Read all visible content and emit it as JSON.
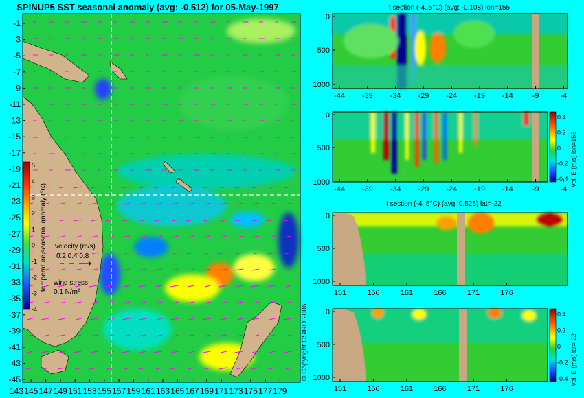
{
  "colors": {
    "page_bg": "#00ffff",
    "land": "#d2b48c",
    "sea": "#22cc44",
    "vector": "#ff00ff",
    "section_bg": "#33cc33"
  },
  "title": "SPINUP5 SST seasonal anomaly (avg: -0.512) for 05-May-1997",
  "copyright": "© Copyright CSIRO 2006",
  "chart_data": [
    {
      "type": "heatmap",
      "id": "map",
      "ylabels": [
        "-1",
        "-3",
        "-5",
        "-7",
        "-9",
        "-11",
        "-13",
        "-15",
        "-17",
        "-19",
        "-21",
        "-23",
        "-25",
        "-27",
        "-29",
        "-31",
        "-33",
        "-35",
        "-37",
        "-39",
        "-41",
        "-43",
        "-45"
      ],
      "xlabels": [
        "143",
        "145",
        "147",
        "149",
        "151",
        "153",
        "155",
        "157",
        "159",
        "161",
        "163",
        "165",
        "167",
        "169",
        "171",
        "173",
        "175",
        "177",
        "179"
      ],
      "colorbar": {
        "label": "temperature seasonal anomaly (°C)",
        "ticks": [
          "5",
          "4",
          "3",
          "2",
          "1",
          "0",
          "-1",
          "-2",
          "-3",
          "-4"
        ],
        "range": [
          -4,
          5
        ]
      },
      "legend": {
        "velocity_label": "velocity (m/s)",
        "velocity_scale": "0.2 0.4 0.8",
        "wind_label": "wind stress",
        "wind_scale": "0.1 N/m²"
      },
      "crosshair": {
        "lon": 155,
        "lat": -22
      }
    },
    {
      "type": "heatmap",
      "id": "p1",
      "title": "t section (-4..5°C) (avg: -0.108) lon=155",
      "xlabels": [
        "-44",
        "-39",
        "-34",
        "-29",
        "-24",
        "-19",
        "-14",
        "-9",
        "-4"
      ],
      "ylabels": [
        "0",
        "500",
        "1000"
      ]
    },
    {
      "type": "heatmap",
      "id": "p2",
      "xlabels": [
        "-44",
        "-39",
        "-34",
        "-29",
        "-24",
        "-19",
        "-14",
        "-9",
        "-4"
      ],
      "ylabels": [
        "0",
        "500",
        "1000"
      ],
      "colorbar": {
        "label": "vel. E (m/s) lon=155",
        "ticks": [
          "0.4",
          "0.2",
          "0",
          "-0.2",
          "-0.4"
        ]
      }
    },
    {
      "type": "heatmap",
      "id": "p3",
      "title": "t section (-4..5°C) (avg: 0.525) lat=-22",
      "xlabels": [
        "151",
        "156",
        "161",
        "166",
        "171",
        "176"
      ],
      "ylabels": [
        "0",
        "500",
        "1000"
      ]
    },
    {
      "type": "heatmap",
      "id": "p4",
      "xlabels": [
        "151",
        "156",
        "161",
        "166",
        "171",
        "176"
      ],
      "ylabels": [
        "0",
        "500",
        "1000"
      ],
      "colorbar": {
        "label": "vel. E (m/s) lat=-22",
        "ticks": [
          "0.4",
          "0.2",
          "0",
          "-0.2",
          "-0.4"
        ]
      }
    }
  ]
}
